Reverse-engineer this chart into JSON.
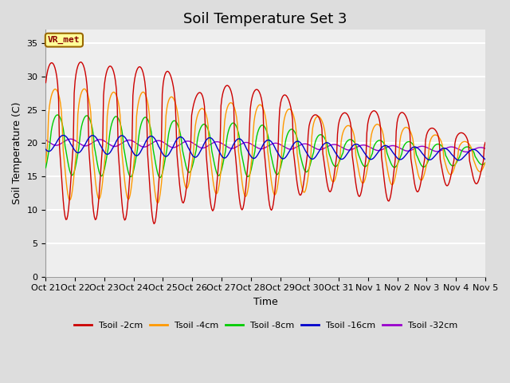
{
  "title": "Soil Temperature Set 3",
  "xlabel": "Time",
  "ylabel": "Soil Temperature (C)",
  "ylim": [
    0,
    37
  ],
  "yticks": [
    0,
    5,
    10,
    15,
    20,
    25,
    30,
    35
  ],
  "n_days": 15,
  "x_labels": [
    "Oct 21",
    "Oct 22",
    "Oct 23",
    "Oct 24",
    "Oct 25",
    "Oct 26",
    "Oct 27",
    "Oct 28",
    "Oct 29",
    "Oct 30",
    "Oct 31",
    "Nov 1",
    "Nov 2",
    "Nov 3",
    "Nov 4",
    "Nov 5"
  ],
  "series_colors": [
    "#cc0000",
    "#ff9900",
    "#00cc00",
    "#0000cc",
    "#9900cc"
  ],
  "series_labels": [
    "Tsoil -2cm",
    "Tsoil -4cm",
    "Tsoil -8cm",
    "Tsoil -16cm",
    "Tsoil -32cm"
  ],
  "background_color": "#dddddd",
  "plot_bg_color": "#eeeeee",
  "annotation_text": "VR_met",
  "annotation_bg": "#ffff99",
  "annotation_border": "#996600",
  "title_fontsize": 13,
  "label_fontsize": 9,
  "tick_fontsize": 8,
  "grid_color": "#ffffff",
  "grid_lw": 1.5,
  "line_width": 1.0
}
